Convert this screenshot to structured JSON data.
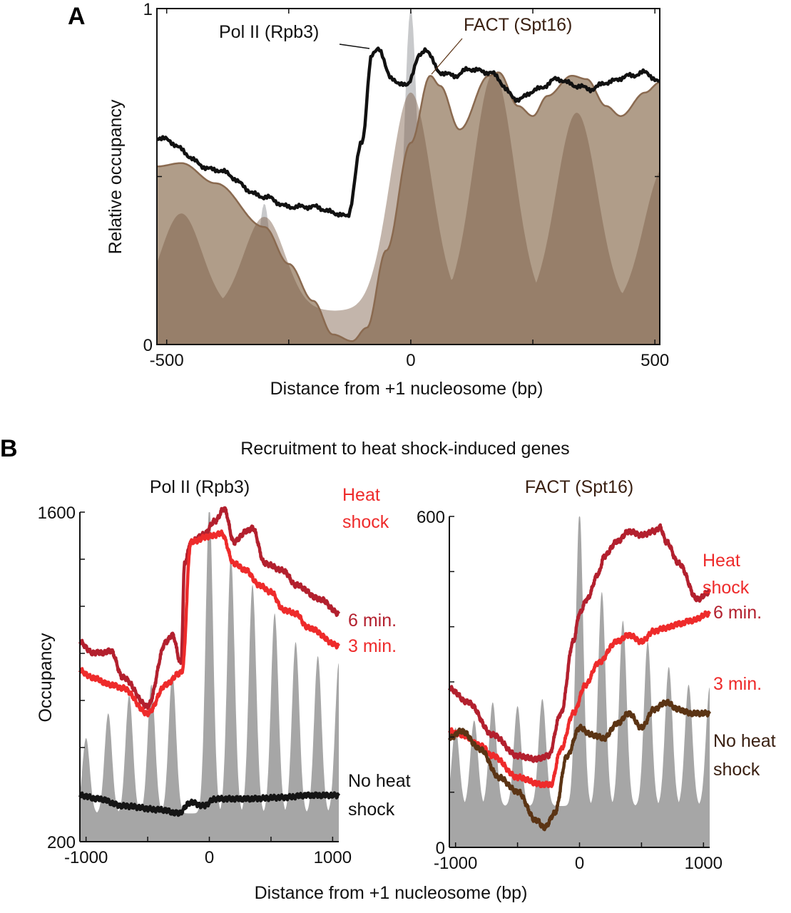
{
  "colors": {
    "pol2": "#111111",
    "fact_fill": "#b09d89",
    "fact_line": "#8a6a50",
    "nucleosome_dark": "#7a5c44",
    "gray_peak": "#c8c9cb",
    "nucleosome_gray": "#a6a6a6",
    "hs6": "#b3202e",
    "hs3": "#ee2b2b",
    "nohs_left": "#151515",
    "nohs_right": "#5b3414",
    "fact_title": "#3a2012"
  },
  "chart_data": [
    {
      "panel": "A",
      "type": "area",
      "xlabel": "Distance from +1 nucleosome (bp)",
      "ylabel": "Relative occupancy",
      "xlim": [
        -520,
        510
      ],
      "ylim": [
        0,
        1
      ],
      "xticks": [
        "-500",
        "0",
        "500"
      ],
      "xtick_values": [
        -500,
        0,
        500
      ],
      "minor_xticks": [
        -250,
        250
      ],
      "yticks": [
        "0",
        "1"
      ],
      "ytick_values": [
        0,
        1
      ],
      "minor_yticks": [
        0.5
      ],
      "series": [
        {
          "name": "FACT (Spt16)",
          "kind": "area",
          "x": [
            -520,
            -470,
            -400,
            -300,
            -250,
            -200,
            -160,
            -120,
            -90,
            -50,
            0,
            40,
            60,
            100,
            160,
            180,
            220,
            250,
            280,
            330,
            360,
            400,
            430,
            480,
            510
          ],
          "y": [
            0.53,
            0.54,
            0.48,
            0.35,
            0.24,
            0.13,
            0.03,
            0.01,
            0.05,
            0.28,
            0.6,
            0.8,
            0.77,
            0.64,
            0.8,
            0.81,
            0.71,
            0.68,
            0.74,
            0.8,
            0.79,
            0.71,
            0.68,
            0.75,
            0.78
          ]
        },
        {
          "name": "Pol II (Rpb3)",
          "kind": "line",
          "x": [
            -520,
            -400,
            -300,
            -250,
            -200,
            -150,
            -130,
            -100,
            -80,
            -65,
            -40,
            -10,
            20,
            30,
            60,
            90,
            120,
            160,
            220,
            260,
            300,
            340,
            370,
            400,
            450,
            480,
            510
          ],
          "y": [
            0.616,
            0.52,
            0.44,
            0.41,
            0.41,
            0.39,
            0.38,
            0.6,
            0.86,
            0.88,
            0.79,
            0.77,
            0.86,
            0.88,
            0.81,
            0.8,
            0.82,
            0.81,
            0.73,
            0.76,
            0.79,
            0.77,
            0.76,
            0.78,
            0.8,
            0.81,
            0.78
          ]
        }
      ],
      "nucleosome_peaks": {
        "base": 0.1,
        "x": [
          -470,
          -300,
          0,
          170,
          340,
          520
        ],
        "y": [
          0.39,
          0.38,
          0.75,
          0.81,
          0.69,
          0.53
        ]
      },
      "gray_peaks": {
        "x": [
          -300,
          0
        ],
        "y": [
          0.42,
          1.0
        ]
      },
      "annotations": [
        "Pol II (Rpb3)",
        "FACT (Spt16)"
      ]
    },
    {
      "panel": "B-left",
      "type": "line",
      "title": "Pol II (Rpb3)",
      "ylabel": "Occupancy",
      "xlim": [
        -1050,
        1050
      ],
      "ylim": [
        200,
        1600
      ],
      "xticks": [
        "-1000",
        "0",
        "1000"
      ],
      "xtick_values": [
        -1000,
        0,
        1000
      ],
      "minor_xticks": [
        -500,
        500
      ],
      "yticks": [
        "200",
        "1600"
      ],
      "ytick_values": [
        200,
        1600
      ],
      "minor_yticks": [
        400,
        600,
        800,
        1000,
        1200,
        1400
      ],
      "series": [
        {
          "name": "6 min.",
          "color_key": "hs6",
          "x": [
            -1050,
            -950,
            -850,
            -800,
            -700,
            -500,
            -350,
            -300,
            -230,
            -200,
            -150,
            -50,
            50,
            120,
            200,
            300,
            350,
            450,
            600,
            700,
            900,
            1050
          ],
          "y": [
            1048,
            1003,
            1003,
            1012,
            897,
            776,
            1048,
            1079,
            958,
            1382,
            1473,
            1503,
            1564,
            1615,
            1473,
            1518,
            1533,
            1382,
            1352,
            1291,
            1230,
            1170
          ]
        },
        {
          "name": "3 min.",
          "color_key": "hs3",
          "x": [
            -1050,
            -950,
            -800,
            -700,
            -500,
            -350,
            -250,
            -220,
            -150,
            0,
            100,
            200,
            300,
            400,
            500,
            600,
            700,
            800,
            1050
          ],
          "y": [
            927,
            897,
            867,
            852,
            745,
            867,
            912,
            927,
            1473,
            1497,
            1509,
            1382,
            1352,
            1291,
            1261,
            1185,
            1170,
            1109,
            1033
          ]
        },
        {
          "name": "No heat shock",
          "color_key": "nohs_left",
          "x": [
            -1050,
            -900,
            -700,
            -400,
            -250,
            -150,
            -50,
            50,
            300,
            600,
            800,
            1050
          ],
          "y": [
            397,
            382,
            352,
            336,
            321,
            367,
            352,
            382,
            382,
            388,
            397,
            397
          ]
        }
      ],
      "nucleosome_peaks": {
        "base": 320,
        "x": [
          -1000,
          -820,
          -650,
          -470,
          -300,
          0,
          175,
          350,
          530,
          700,
          880,
          1050
        ],
        "y": [
          640,
          745,
          821,
          867,
          912,
          1624,
          1412,
          1291,
          1170,
          1048,
          988,
          958
        ]
      },
      "legend_labels": {
        "heat_shock": "Heat shock",
        "six": "6 min.",
        "three": "3 min.",
        "no_heat": "No heat shock"
      }
    },
    {
      "panel": "B-right",
      "type": "line",
      "title": "FACT (Spt16)",
      "xlim": [
        -1050,
        1050
      ],
      "ylim": [
        0,
        600
      ],
      "xticks": [
        "-1000",
        "0",
        "1000"
      ],
      "xtick_values": [
        -1000,
        0,
        1000
      ],
      "minor_xticks": [
        -500,
        500
      ],
      "yticks": [
        "0",
        "600"
      ],
      "ytick_values": [
        0,
        600
      ],
      "minor_yticks": [
        100,
        200,
        300,
        400,
        500
      ],
      "series": [
        {
          "name": "6 min.",
          "color_key": "hs6",
          "x": [
            -1050,
            -900,
            -700,
            -500,
            -350,
            -250,
            -150,
            -50,
            0,
            60,
            150,
            200,
            300,
            400,
            500,
            600,
            650,
            700,
            800,
            950,
            1050
          ],
          "y": [
            288,
            263,
            204,
            166,
            160,
            166,
            243,
            373,
            424,
            450,
            495,
            528,
            554,
            573,
            566,
            573,
            580,
            554,
            515,
            450,
            463
          ]
        },
        {
          "name": "3 min.",
          "color_key": "hs3",
          "x": [
            -1050,
            -950,
            -800,
            -700,
            -500,
            -300,
            -230,
            -150,
            -50,
            50,
            150,
            300,
            400,
            500,
            600,
            700,
            800,
            900,
            1050
          ],
          "y": [
            211,
            204,
            185,
            166,
            127,
            114,
            114,
            178,
            243,
            295,
            334,
            373,
            385,
            373,
            392,
            398,
            405,
            411,
            424
          ]
        },
        {
          "name": "No heat shock",
          "color_key": "nohs_right",
          "x": [
            -1050,
            -950,
            -800,
            -650,
            -500,
            -350,
            -280,
            -200,
            -100,
            0,
            100,
            200,
            300,
            400,
            500,
            600,
            700,
            800,
            900,
            1050
          ],
          "y": [
            198,
            211,
            178,
            127,
            101,
            49,
            36,
            62,
            166,
            217,
            204,
            198,
            224,
            243,
            217,
            250,
            263,
            250,
            243,
            243
          ]
        }
      ],
      "nucleosome_peaks": {
        "base": 75,
        "x": [
          -1000,
          -850,
          -700,
          -500,
          -300,
          0,
          180,
          350,
          550,
          720,
          880,
          1050
        ],
        "y": [
          217,
          230,
          263,
          256,
          269,
          608,
          463,
          411,
          373,
          327,
          295,
          290
        ]
      },
      "legend_labels": {
        "heat_shock": "Heat shock",
        "six": "6 min.",
        "three": "3 min.",
        "no_heat": "No heat shock"
      }
    }
  ],
  "panel_labels": {
    "a": "A",
    "b": "B"
  },
  "panel_b_title": "Recruitment to heat shock-induced genes",
  "shared_xlabel_b": "Distance from +1 nucleosome (bp)",
  "text": {
    "heat": "Heat",
    "shock": "shock",
    "six": "6 min.",
    "three": "3 min.",
    "no_heat": "No heat",
    "pol2": "Pol II (Rpb3)",
    "fact": "FACT (Spt16)"
  }
}
